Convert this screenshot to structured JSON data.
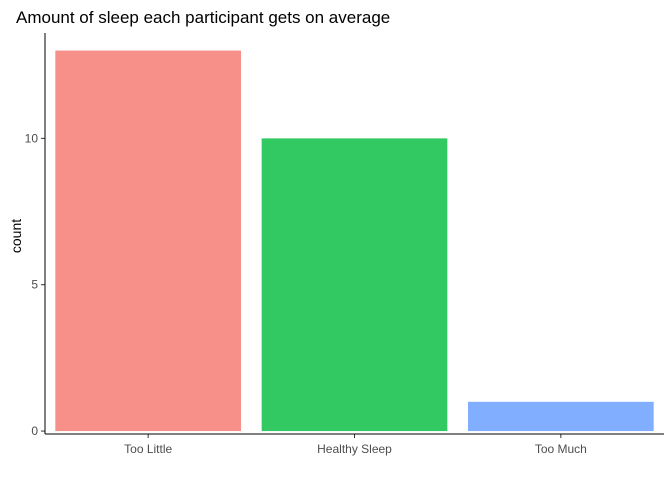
{
  "chart_data": {
    "type": "bar",
    "title": "Amount of sleep each participant gets on average",
    "xlabel": "",
    "ylabel": "count",
    "categories": [
      "Too Little",
      "Healthy Sleep",
      "Too Much"
    ],
    "values": [
      13,
      10,
      1
    ],
    "colors": [
      "#F8908A",
      "#33C962",
      "#82AEFF"
    ],
    "ylim": [
      -0.1,
      13.6
    ],
    "yticks": [
      0,
      5,
      10
    ],
    "ytick_labels": [
      "0",
      "5",
      "10"
    ],
    "grid": false,
    "legend": "none"
  }
}
